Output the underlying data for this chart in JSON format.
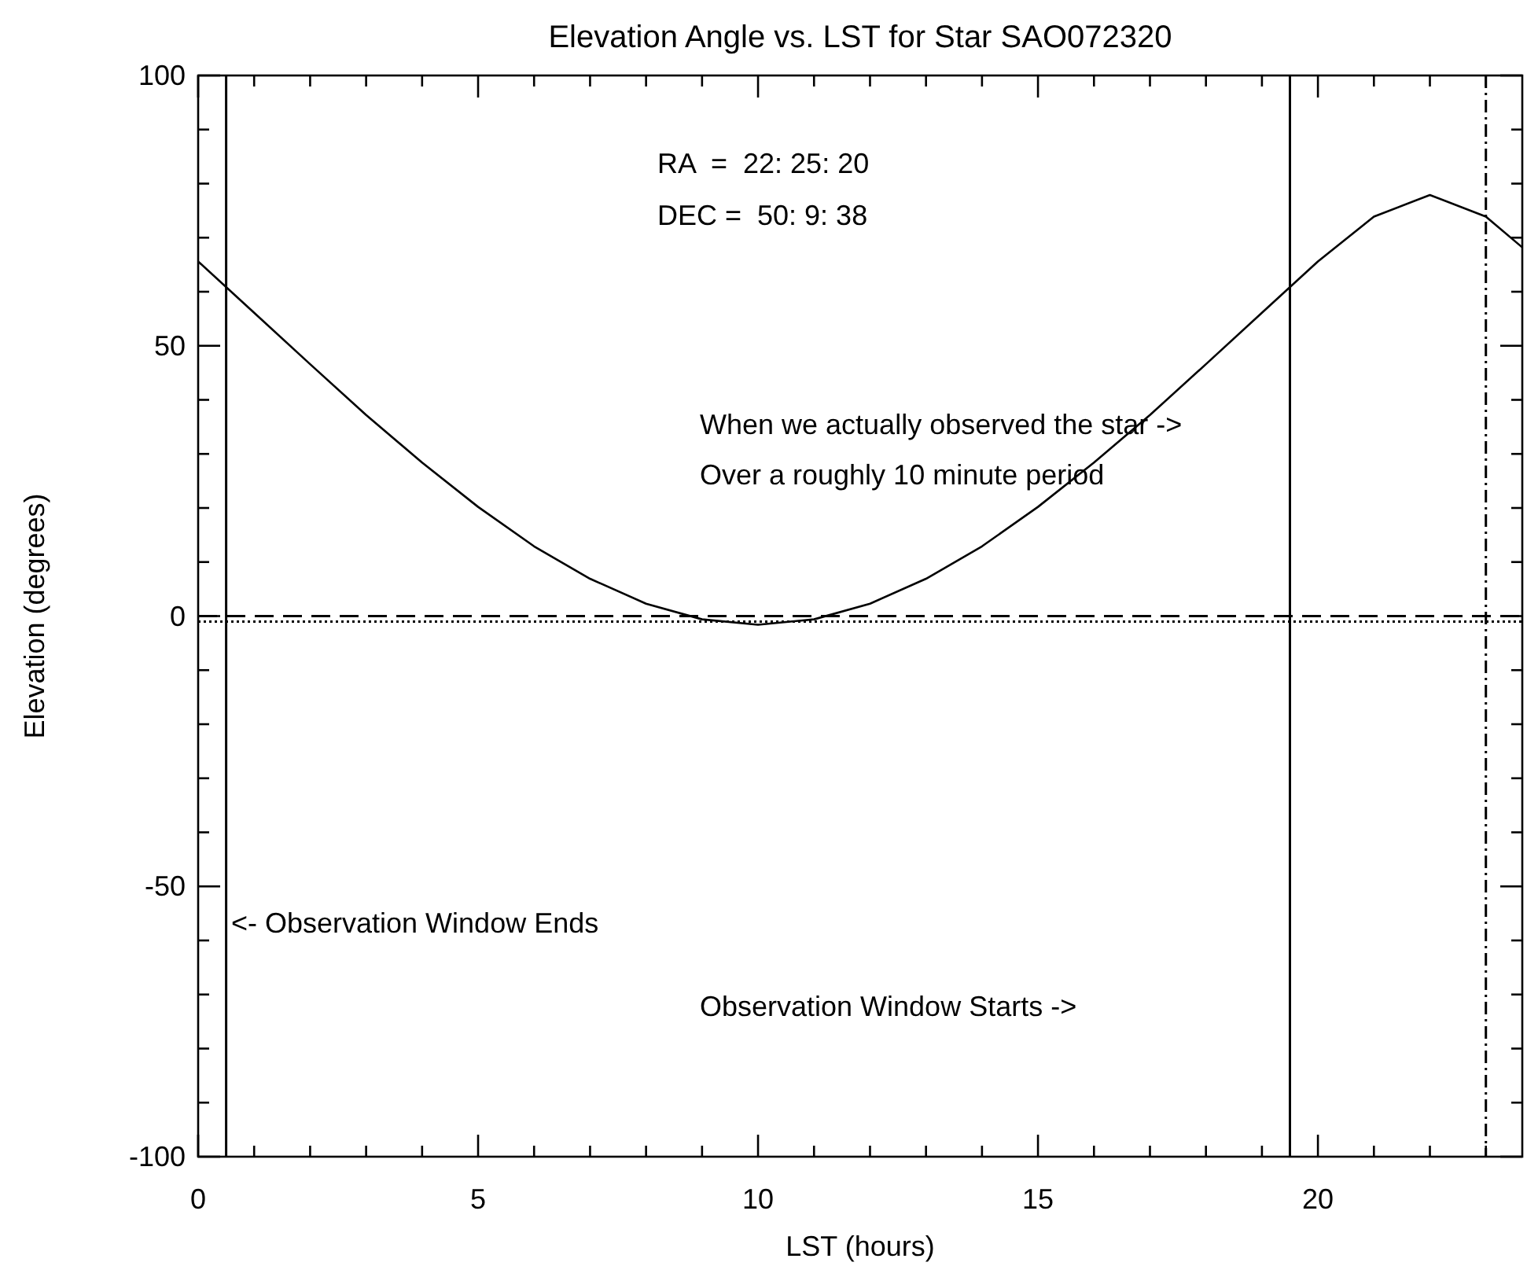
{
  "chart_data": {
    "type": "line",
    "title": "Elevation Angle vs. LST for Star SAO072320",
    "xlabel": "LST (hours)",
    "ylabel": "Elevation (degrees)",
    "x": [
      0,
      1,
      2,
      3,
      4,
      5,
      6,
      7,
      8,
      9,
      10,
      11,
      12,
      13,
      14,
      15,
      16,
      17,
      18,
      19,
      20,
      21,
      22,
      23,
      23.65
    ],
    "series": [
      {
        "color": "#000000",
        "values": [
          65.6,
          56.1,
          46.6,
          37.2,
          28.4,
          20.2,
          12.9,
          6.9,
          2.3,
          -0.6,
          -1.6,
          -0.6,
          2.3,
          6.9,
          12.9,
          20.2,
          28.4,
          37.2,
          46.6,
          56.1,
          65.6,
          73.9,
          77.9,
          73.9,
          68.2
        ]
      }
    ],
    "xlim": [
      0,
      23.65
    ],
    "ylim": [
      -100,
      100
    ],
    "xticks": [
      0,
      {
        "value": 1,
        "label": null
      },
      {
        "value": 2,
        "label": null
      },
      {
        "value": 3,
        "label": null
      },
      {
        "value": 4,
        "label": null
      },
      5,
      {
        "value": 6,
        "label": null
      },
      {
        "value": 7,
        "label": null
      },
      {
        "value": 8,
        "label": null
      },
      {
        "value": 9,
        "label": null
      },
      10,
      {
        "value": 11,
        "label": null
      },
      {
        "value": 12,
        "label": null
      },
      {
        "value": 13,
        "label": null
      },
      {
        "value": 14,
        "label": null
      },
      15,
      {
        "value": 16,
        "label": null
      },
      {
        "value": 17,
        "label": null
      },
      {
        "value": 18,
        "label": null
      },
      {
        "value": 19,
        "label": null
      },
      20,
      {
        "value": 21,
        "label": null
      },
      {
        "value": 22,
        "label": null
      },
      {
        "value": 23,
        "label": null
      }
    ],
    "yticks": [
      -100,
      {
        "value": -90,
        "label": null
      },
      {
        "value": -80,
        "label": null
      },
      {
        "value": -70,
        "label": null
      },
      {
        "value": -60,
        "label": null
      },
      -50,
      {
        "value": -40,
        "label": null
      },
      {
        "value": -30,
        "label": null
      },
      {
        "value": -20,
        "label": null
      },
      {
        "value": -10,
        "label": null
      },
      0,
      {
        "value": 10,
        "label": null
      },
      {
        "value": 20,
        "label": null
      },
      {
        "value": 30,
        "label": null
      },
      {
        "value": 40,
        "label": null
      },
      50,
      {
        "value": 60,
        "label": null
      },
      {
        "value": 70,
        "label": null
      },
      {
        "value": 80,
        "label": null
      },
      {
        "value": 90,
        "label": null
      },
      100
    ],
    "ref_lines": [
      {
        "axis": "x",
        "value": 0.5,
        "color": "#000000",
        "line_style": "solid"
      },
      {
        "axis": "x",
        "value": 19.5,
        "color": "#000000",
        "line_style": "solid"
      },
      {
        "axis": "x",
        "value": 23,
        "color": "#000000",
        "line_style": "dashdot"
      },
      {
        "axis": "y",
        "value": 0,
        "color": "#000000",
        "line_style": "dashed"
      },
      {
        "axis": "y",
        "value": -1,
        "color": "#000000",
        "line_style": "dotted"
      }
    ],
    "annotations": [
      "RA  =  22: 25: 20",
      "DEC =  50: 9: 38",
      "When we actually observed the star ->",
      "Over a roughly 10 minute period",
      "<- Observation Window Ends",
      "Observation Window Starts ->"
    ],
    "line_style": "solid",
    "marker": "none",
    "grid": false
  }
}
